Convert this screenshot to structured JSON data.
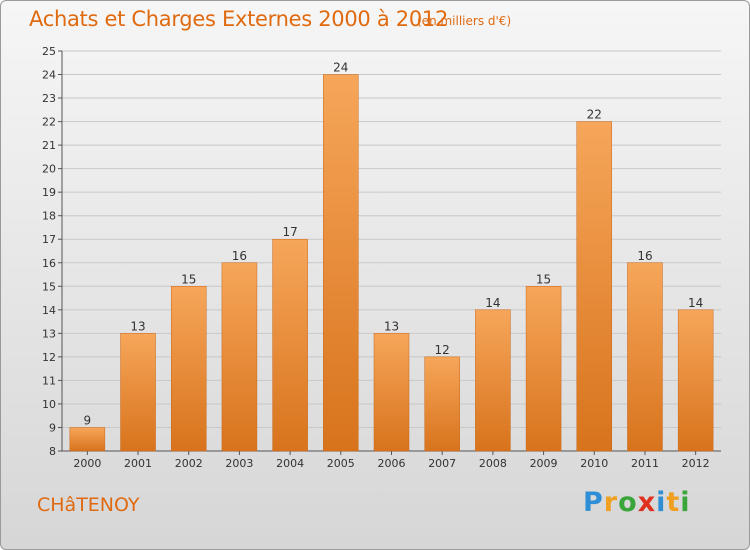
{
  "header": {
    "title": "Achats et Charges Externes 2000 à 2012",
    "subtitle": "(en milliers d'€)"
  },
  "footer": {
    "commune": "CHâTENOY",
    "logo_text": "Proxiti",
    "logo_letters": [
      {
        "ch": "P",
        "color": "#2e8fd6"
      },
      {
        "ch": "r",
        "color": "#f0a020"
      },
      {
        "ch": "o",
        "color": "#3aa53a"
      },
      {
        "ch": "x",
        "color": "#e0301e"
      },
      {
        "ch": "i",
        "color": "#2e8fd6"
      },
      {
        "ch": "t",
        "color": "#f0a020"
      },
      {
        "ch": "i",
        "color": "#3aa53a"
      }
    ]
  },
  "colors": {
    "bar_top": "#f6a65a",
    "bar_bottom": "#d8731c",
    "grid": "#c8c8c8",
    "accent": "#e06a10"
  },
  "chart_data": {
    "type": "bar",
    "title": "Achats et Charges Externes 2000 à 2012",
    "subtitle": "(en milliers d'€)",
    "xlabel": "",
    "ylabel": "",
    "categories": [
      "2000",
      "2001",
      "2002",
      "2003",
      "2004",
      "2005",
      "2006",
      "2007",
      "2008",
      "2009",
      "2010",
      "2011",
      "2012"
    ],
    "values": [
      9,
      13,
      15,
      16,
      17,
      24,
      13,
      12,
      14,
      15,
      22,
      16,
      14
    ],
    "ylim": [
      8,
      25
    ],
    "yticks": [
      8,
      9,
      10,
      11,
      12,
      13,
      14,
      15,
      16,
      17,
      18,
      19,
      20,
      21,
      22,
      23,
      24,
      25
    ],
    "grid": true,
    "legend": "none"
  }
}
